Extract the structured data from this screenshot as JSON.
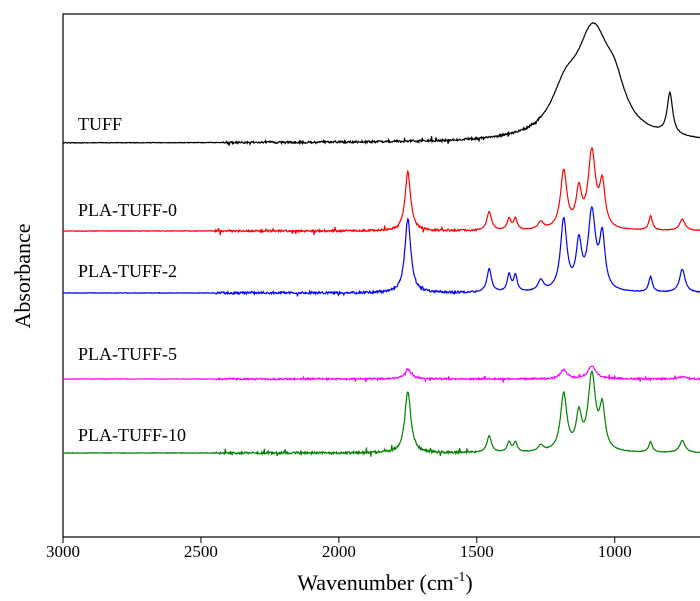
{
  "chart_data": {
    "type": "line",
    "title": "",
    "xlabel": "Wavenumber",
    "xlabel_unit": "(cm",
    "xlabel_unit_exp": "-1",
    "xlabel_unit_close": ")",
    "ylabel": "Absorbance",
    "x_reversed": true,
    "xlim": [
      3000,
      680
    ],
    "xticks": [
      3000,
      2500,
      2000,
      1500,
      1000
    ],
    "yticks_shown": false,
    "grid": false,
    "legend": "none (series labelled inline above each trace)",
    "series": [
      {
        "name": "TUFF",
        "color": "#000000",
        "baseline": 0.0,
        "peaks": [
          {
            "x": 1078,
            "y": 1.0,
            "w": 75
          },
          {
            "x": 1180,
            "y": 0.35,
            "w": 60
          },
          {
            "x": 1000,
            "y": 0.3,
            "w": 45
          },
          {
            "x": 800,
            "y": 0.4,
            "w": 12
          }
        ]
      },
      {
        "name": "PLA-TUFF-0",
        "color": "#ff0000",
        "baseline": 0.0,
        "peaks": [
          {
            "x": 1750,
            "y": 0.62,
            "w": 12
          },
          {
            "x": 1455,
            "y": 0.2,
            "w": 10
          },
          {
            "x": 1383,
            "y": 0.12,
            "w": 8
          },
          {
            "x": 1360,
            "y": 0.12,
            "w": 8
          },
          {
            "x": 1268,
            "y": 0.08,
            "w": 12
          },
          {
            "x": 1185,
            "y": 0.61,
            "w": 14
          },
          {
            "x": 1130,
            "y": 0.38,
            "w": 12
          },
          {
            "x": 1083,
            "y": 0.8,
            "w": 16
          },
          {
            "x": 1045,
            "y": 0.45,
            "w": 12
          },
          {
            "x": 870,
            "y": 0.15,
            "w": 8
          },
          {
            "x": 755,
            "y": 0.12,
            "w": 12
          }
        ]
      },
      {
        "name": "PLA-TUFF-2",
        "color": "#0000ff",
        "baseline": 0.0,
        "peaks": [
          {
            "x": 1750,
            "y": 0.82,
            "w": 13
          },
          {
            "x": 1455,
            "y": 0.26,
            "w": 10
          },
          {
            "x": 1383,
            "y": 0.19,
            "w": 8
          },
          {
            "x": 1360,
            "y": 0.18,
            "w": 8
          },
          {
            "x": 1268,
            "y": 0.12,
            "w": 12
          },
          {
            "x": 1185,
            "y": 0.79,
            "w": 14
          },
          {
            "x": 1130,
            "y": 0.5,
            "w": 12
          },
          {
            "x": 1083,
            "y": 0.86,
            "w": 16
          },
          {
            "x": 1045,
            "y": 0.58,
            "w": 12
          },
          {
            "x": 870,
            "y": 0.17,
            "w": 8
          },
          {
            "x": 755,
            "y": 0.26,
            "w": 12
          }
        ]
      },
      {
        "name": "PLA-TUFF-5",
        "color": "#ff00ff",
        "baseline": 0.0,
        "peaks": [
          {
            "x": 1750,
            "y": 0.11,
            "w": 14
          },
          {
            "x": 1185,
            "y": 0.1,
            "w": 14
          },
          {
            "x": 1083,
            "y": 0.14,
            "w": 18
          },
          {
            "x": 755,
            "y": 0.03,
            "w": 12
          }
        ]
      },
      {
        "name": "PLA-TUFF-10",
        "color": "#008000",
        "baseline": 0.0,
        "peaks": [
          {
            "x": 1750,
            "y": 0.82,
            "w": 13
          },
          {
            "x": 1455,
            "y": 0.22,
            "w": 10
          },
          {
            "x": 1383,
            "y": 0.13,
            "w": 8
          },
          {
            "x": 1360,
            "y": 0.13,
            "w": 8
          },
          {
            "x": 1268,
            "y": 0.08,
            "w": 12
          },
          {
            "x": 1185,
            "y": 0.76,
            "w": 14
          },
          {
            "x": 1130,
            "y": 0.45,
            "w": 12
          },
          {
            "x": 1083,
            "y": 1.0,
            "w": 16
          },
          {
            "x": 1045,
            "y": 0.55,
            "w": 12
          },
          {
            "x": 870,
            "y": 0.14,
            "w": 8
          },
          {
            "x": 755,
            "y": 0.16,
            "w": 12
          }
        ]
      }
    ]
  }
}
